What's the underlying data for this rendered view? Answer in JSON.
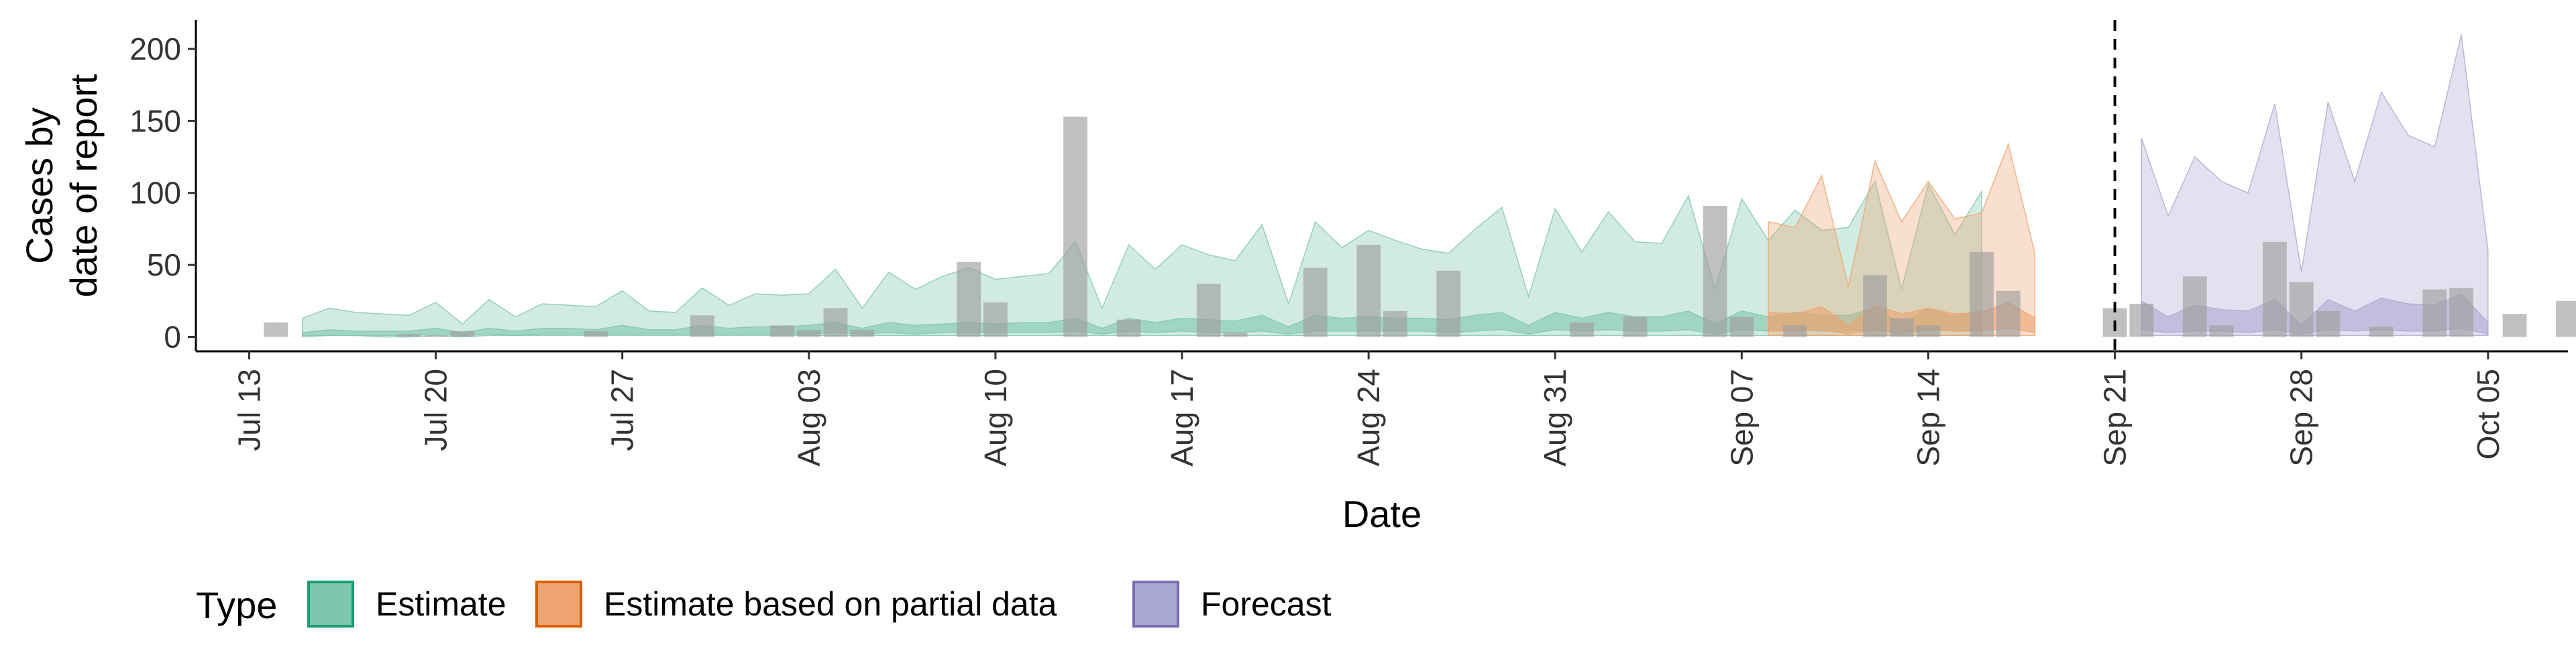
{
  "chart_data": {
    "type": "area",
    "xlabel": "Date",
    "ylabel_lines": [
      "Cases by",
      "date of report"
    ],
    "ylim": [
      -10,
      220
    ],
    "y_ticks": [
      0,
      50,
      100,
      150,
      200
    ],
    "x_range": [
      "2020-07-11",
      "2020-10-08"
    ],
    "x_ticks": [
      {
        "date": "2020-07-13",
        "label": "Jul 13"
      },
      {
        "date": "2020-07-20",
        "label": "Jul 20"
      },
      {
        "date": "2020-07-27",
        "label": "Jul 27"
      },
      {
        "date": "2020-08-03",
        "label": "Aug 03"
      },
      {
        "date": "2020-08-10",
        "label": "Aug 10"
      },
      {
        "date": "2020-08-17",
        "label": "Aug 17"
      },
      {
        "date": "2020-08-24",
        "label": "Aug 24"
      },
      {
        "date": "2020-08-31",
        "label": "Aug 31"
      },
      {
        "date": "2020-09-07",
        "label": "Sep 07"
      },
      {
        "date": "2020-09-14",
        "label": "Sep 14"
      },
      {
        "date": "2020-09-21",
        "label": "Sep 21"
      },
      {
        "date": "2020-09-28",
        "label": "Sep 28"
      },
      {
        "date": "2020-10-05",
        "label": "Oct 05"
      }
    ],
    "vline_date": "2020-09-21",
    "grid": false,
    "legend": {
      "title": "Type",
      "position": "bottom-left",
      "items": [
        {
          "label": "Estimate",
          "fill": "#7fc7ac",
          "stroke": "#1b9e77"
        },
        {
          "label": "Estimate based on partial data",
          "fill": "#eda470",
          "stroke": "#d95f02"
        },
        {
          "label": "Forecast",
          "fill": "#aba9d1",
          "stroke": "#7570b3"
        }
      ]
    },
    "observed_bar_color": "#9e9e9e",
    "observed_cases": {
      "start": "2020-07-14",
      "values": [
        10,
        0,
        0,
        0,
        0,
        2,
        1,
        4,
        0,
        0,
        0,
        0,
        4,
        0,
        0,
        0,
        15,
        0,
        0,
        8,
        5,
        20,
        5,
        0,
        0,
        0,
        52,
        24,
        0,
        0,
        153,
        0,
        12,
        0,
        0,
        37,
        3,
        0,
        0,
        48,
        0,
        64,
        18,
        0,
        46,
        0,
        0,
        0,
        0,
        10,
        0,
        14,
        0,
        0,
        91,
        14,
        0,
        8,
        0,
        0,
        43,
        13,
        8,
        0,
        59,
        32,
        0,
        0,
        0,
        20,
        23,
        0,
        42,
        8,
        0,
        66,
        38,
        18,
        0,
        7,
        0,
        33,
        34,
        0,
        16,
        0,
        25,
        24
      ]
    },
    "series": [
      {
        "name": "Estimate",
        "start": "2020-07-15",
        "upper": [
          13,
          20,
          17,
          16,
          15,
          24,
          9,
          26,
          14,
          23,
          22,
          21,
          32,
          18,
          17,
          34,
          22,
          30,
          29,
          30,
          47,
          20,
          45,
          33,
          42,
          48,
          40,
          42,
          44,
          66,
          20,
          64,
          47,
          64,
          57,
          53,
          78,
          23,
          80,
          62,
          74,
          67,
          61,
          58,
          75,
          90,
          28,
          89,
          59,
          87,
          66,
          65,
          98,
          33,
          96,
          67,
          88,
          74,
          76,
          108,
          33,
          106,
          71,
          101
        ],
        "lower": [
          0,
          1,
          1,
          0,
          0,
          1,
          0,
          1,
          1,
          1,
          1,
          1,
          1,
          1,
          1,
          1,
          1,
          1,
          1,
          1,
          1,
          1,
          1,
          1,
          1,
          1,
          1,
          1,
          1,
          1,
          1,
          1,
          1,
          1,
          1,
          1,
          1,
          1,
          1,
          1,
          1,
          1,
          1,
          1,
          1,
          1,
          1,
          1,
          1,
          1,
          1,
          1,
          1,
          1,
          1,
          1,
          1,
          1,
          1,
          1,
          1,
          1,
          1,
          1
        ],
        "inner_upper": [
          3,
          5,
          4,
          4,
          4,
          6,
          3,
          6,
          4,
          6,
          6,
          5,
          8,
          5,
          5,
          8,
          6,
          7,
          7,
          8,
          10,
          6,
          10,
          8,
          9,
          10,
          9,
          10,
          10,
          13,
          6,
          13,
          10,
          13,
          12,
          11,
          15,
          7,
          15,
          13,
          14,
          13,
          13,
          12,
          15,
          17,
          8,
          17,
          13,
          17,
          14,
          14,
          18,
          9,
          18,
          14,
          17,
          15,
          15,
          20,
          9,
          20,
          14,
          19
        ],
        "inner_lower": [
          1,
          1,
          1,
          1,
          1,
          2,
          1,
          2,
          1,
          2,
          2,
          2,
          2,
          2,
          2,
          2,
          2,
          2,
          2,
          2,
          3,
          2,
          3,
          2,
          3,
          3,
          3,
          3,
          3,
          4,
          2,
          4,
          3,
          4,
          3,
          3,
          4,
          2,
          4,
          4,
          4,
          4,
          4,
          3,
          4,
          5,
          2,
          5,
          4,
          5,
          4,
          4,
          5,
          2,
          5,
          4,
          5,
          4,
          4,
          5,
          2,
          5,
          4,
          5
        ]
      },
      {
        "name": "Estimate based on partial data",
        "start": "2020-09-08",
        "upper": [
          80,
          76,
          112,
          35,
          122,
          80,
          108,
          82,
          86,
          134,
          58
        ],
        "lower": [
          1,
          1,
          1,
          1,
          1,
          1,
          1,
          1,
          1,
          1,
          1
        ],
        "inner_upper": [
          17,
          16,
          21,
          8,
          22,
          16,
          20,
          16,
          17,
          24,
          13
        ],
        "inner_lower": [
          4,
          4,
          5,
          2,
          5,
          4,
          5,
          4,
          4,
          6,
          3
        ]
      },
      {
        "name": "Forecast",
        "start": "2020-09-22",
        "upper": [
          138,
          84,
          125,
          108,
          100,
          162,
          45,
          163,
          108,
          170,
          140,
          132,
          210,
          60
        ],
        "lower": [
          1,
          1,
          1,
          1,
          1,
          1,
          1,
          1,
          1,
          1,
          1,
          1,
          1,
          1
        ],
        "inner_upper": [
          25,
          14,
          22,
          19,
          18,
          26,
          8,
          26,
          18,
          27,
          23,
          22,
          30,
          10
        ],
        "inner_lower": [
          5,
          3,
          4,
          4,
          3,
          5,
          2,
          5,
          4,
          5,
          4,
          4,
          6,
          2
        ]
      }
    ]
  }
}
